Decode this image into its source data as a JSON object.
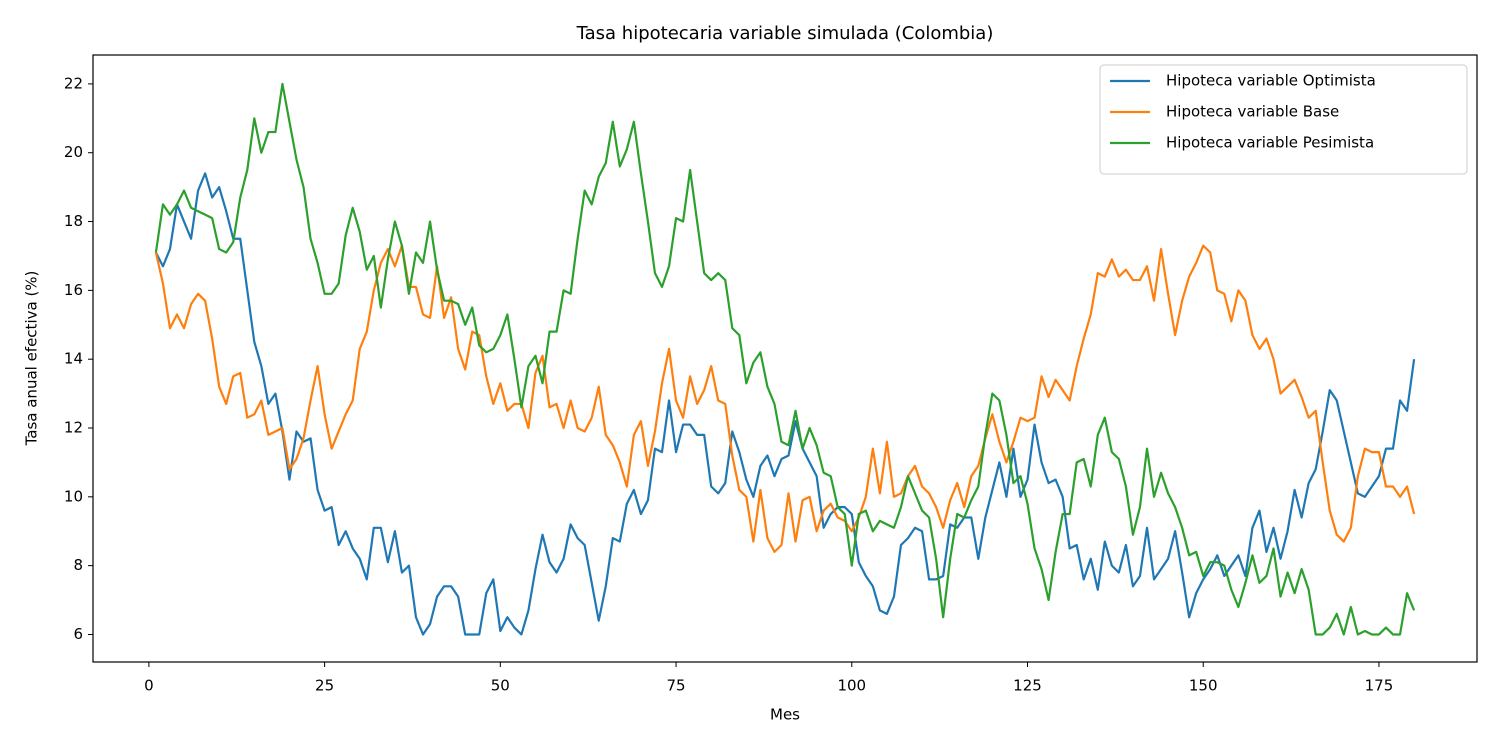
{
  "chart_data": {
    "type": "line",
    "title": "Tasa hipotecaria variable simulada (Colombia)",
    "x_label": "Mes",
    "y_label": "Tasa anual efectiva (%)",
    "x": [
      1,
      2,
      3,
      4,
      5,
      6,
      7,
      8,
      9,
      10,
      11,
      12,
      13,
      14,
      15,
      16,
      17,
      18,
      19,
      20,
      21,
      22,
      23,
      24,
      25,
      26,
      27,
      28,
      29,
      30,
      31,
      32,
      33,
      34,
      35,
      36,
      37,
      38,
      39,
      40,
      41,
      42,
      43,
      44,
      45,
      46,
      47,
      48,
      49,
      50,
      51,
      52,
      53,
      54,
      55,
      56,
      57,
      58,
      59,
      60,
      61,
      62,
      63,
      64,
      65,
      66,
      67,
      68,
      69,
      70,
      71,
      72,
      73,
      74,
      75,
      76,
      77,
      78,
      79,
      80,
      81,
      82,
      83,
      84,
      85,
      86,
      87,
      88,
      89,
      90,
      91,
      92,
      93,
      94,
      95,
      96,
      97,
      98,
      99,
      100,
      101,
      102,
      103,
      104,
      105,
      106,
      107,
      108,
      109,
      110,
      111,
      112,
      113,
      114,
      115,
      116,
      117,
      118,
      119,
      120,
      121,
      122,
      123,
      124,
      125,
      126,
      127,
      128,
      129,
      130,
      131,
      132,
      133,
      134,
      135,
      136,
      137,
      138,
      139,
      140,
      141,
      142,
      143,
      144,
      145,
      146,
      147,
      148,
      149,
      150,
      151,
      152,
      153,
      154,
      155,
      156,
      157,
      158,
      159,
      160,
      161,
      162,
      163,
      164,
      165,
      166,
      167,
      168,
      169,
      170,
      171,
      172,
      173,
      174,
      175,
      176,
      177,
      178,
      179,
      180
    ],
    "series": [
      {
        "name": "Hipoteca variable Optimista",
        "color": "#1f77b4",
        "values": [
          17.1,
          16.7,
          17.2,
          18.5,
          18.0,
          17.5,
          18.9,
          19.4,
          18.7,
          19.0,
          18.3,
          17.5,
          17.5,
          16.0,
          14.5,
          13.8,
          12.7,
          13.0,
          11.9,
          10.5,
          11.9,
          11.6,
          11.7,
          10.2,
          9.6,
          9.7,
          8.6,
          9.0,
          8.5,
          8.2,
          7.6,
          9.1,
          9.1,
          8.1,
          9.0,
          7.8,
          8.0,
          6.5,
          6.0,
          6.3,
          7.1,
          7.4,
          7.4,
          7.1,
          6.0,
          6.0,
          6.0,
          7.2,
          7.6,
          6.1,
          6.5,
          6.2,
          6.0,
          6.7,
          7.9,
          8.9,
          8.1,
          7.8,
          8.2,
          9.2,
          8.8,
          8.6,
          7.5,
          6.4,
          7.4,
          8.8,
          8.7,
          9.8,
          10.2,
          9.5,
          9.9,
          11.4,
          11.3,
          12.8,
          11.3,
          12.1,
          12.1,
          11.8,
          11.8,
          10.3,
          10.1,
          10.4,
          11.9,
          11.3,
          10.5,
          10.0,
          10.9,
          11.2,
          10.6,
          11.1,
          11.2,
          12.2,
          11.4,
          11.0,
          10.6,
          9.1,
          9.5,
          9.7,
          9.7,
          9.5,
          8.1,
          7.7,
          7.4,
          6.7,
          6.6,
          7.1,
          8.6,
          8.8,
          9.1,
          9.0,
          7.6,
          7.6,
          7.7,
          9.2,
          9.1,
          9.4,
          9.4,
          8.2,
          9.4,
          10.2,
          11.0,
          10.0,
          11.4,
          10.0,
          10.5,
          12.1,
          11.0,
          10.4,
          10.5,
          10.0,
          8.5,
          8.6,
          7.6,
          8.2,
          7.3,
          8.7,
          8.0,
          7.8,
          8.6,
          7.4,
          7.7,
          9.1,
          7.6,
          7.9,
          8.2,
          9.0,
          7.8,
          6.5,
          7.2,
          7.6,
          7.9,
          8.3,
          7.7,
          8.0,
          8.3,
          7.7,
          9.1,
          9.6,
          8.4,
          9.1,
          8.2,
          9.0,
          10.2,
          9.4,
          10.4,
          10.8,
          11.9,
          13.1,
          12.8,
          11.9,
          11.0,
          10.1,
          10.0,
          10.3,
          10.6,
          11.4,
          11.4,
          12.8,
          12.5,
          14.0
        ]
      },
      {
        "name": "Hipoteca variable Base",
        "color": "#ff7f0e",
        "values": [
          17.1,
          16.2,
          14.9,
          15.3,
          14.9,
          15.6,
          15.9,
          15.7,
          14.6,
          13.2,
          12.7,
          13.5,
          13.6,
          12.3,
          12.4,
          12.8,
          11.8,
          11.9,
          12.0,
          10.8,
          11.1,
          11.7,
          12.8,
          13.8,
          12.4,
          11.4,
          11.9,
          12.4,
          12.8,
          14.3,
          14.8,
          16.0,
          16.8,
          17.2,
          16.7,
          17.3,
          16.1,
          16.1,
          15.3,
          15.2,
          16.7,
          15.2,
          15.8,
          14.3,
          13.7,
          14.8,
          14.7,
          13.5,
          12.7,
          13.3,
          12.5,
          12.7,
          12.7,
          12.0,
          13.6,
          14.1,
          12.6,
          12.7,
          12.0,
          12.8,
          12.0,
          11.9,
          12.3,
          13.2,
          11.8,
          11.5,
          11.0,
          10.3,
          11.8,
          12.2,
          10.9,
          11.9,
          13.3,
          14.3,
          12.8,
          12.3,
          13.5,
          12.7,
          13.1,
          13.8,
          12.8,
          12.7,
          11.2,
          10.2,
          10.0,
          8.7,
          10.2,
          8.8,
          8.4,
          8.6,
          10.1,
          8.7,
          9.9,
          10.0,
          9.0,
          9.6,
          9.8,
          9.4,
          9.3,
          9.0,
          9.4,
          10.0,
          11.4,
          10.1,
          11.6,
          10.0,
          10.1,
          10.6,
          10.9,
          10.3,
          10.1,
          9.7,
          9.1,
          9.9,
          10.4,
          9.7,
          10.6,
          10.9,
          11.7,
          12.4,
          11.6,
          11.0,
          11.6,
          12.3,
          12.2,
          12.3,
          13.5,
          12.9,
          13.4,
          13.1,
          12.8,
          13.8,
          14.6,
          15.3,
          16.5,
          16.4,
          16.9,
          16.4,
          16.6,
          16.3,
          16.3,
          16.7,
          15.7,
          17.2,
          15.9,
          14.7,
          15.7,
          16.4,
          16.8,
          17.3,
          17.1,
          16.0,
          15.9,
          15.1,
          16.0,
          15.7,
          14.7,
          14.3,
          14.6,
          14.0,
          13.0,
          13.2,
          13.4,
          12.9,
          12.3,
          12.5,
          11.0,
          9.6,
          8.9,
          8.7,
          9.1,
          10.6,
          11.4,
          11.3,
          11.3,
          10.3,
          10.3,
          10.0,
          10.3,
          9.5
        ]
      },
      {
        "name": "Hipoteca variable Pesimista",
        "color": "#2ca02c",
        "values": [
          17.1,
          18.5,
          18.2,
          18.5,
          18.9,
          18.4,
          18.3,
          18.2,
          18.1,
          17.2,
          17.1,
          17.4,
          18.7,
          19.5,
          21.0,
          20.0,
          20.6,
          20.6,
          22.0,
          20.9,
          19.8,
          19.0,
          17.5,
          16.8,
          15.9,
          15.9,
          16.2,
          17.6,
          18.4,
          17.7,
          16.6,
          17.0,
          15.5,
          16.9,
          18.0,
          17.3,
          15.9,
          17.1,
          16.8,
          18.0,
          16.6,
          15.7,
          15.7,
          15.6,
          15.0,
          15.5,
          14.4,
          14.2,
          14.3,
          14.7,
          15.3,
          14.0,
          12.6,
          13.8,
          14.1,
          13.3,
          14.8,
          14.8,
          16.0,
          15.9,
          17.5,
          18.9,
          18.5,
          19.3,
          19.7,
          20.9,
          19.6,
          20.1,
          20.9,
          19.4,
          18.0,
          16.5,
          16.1,
          16.7,
          18.1,
          18.0,
          19.5,
          18.0,
          16.5,
          16.3,
          16.5,
          16.3,
          14.9,
          14.7,
          13.3,
          13.9,
          14.2,
          13.2,
          12.7,
          11.6,
          11.5,
          12.5,
          11.4,
          12.0,
          11.5,
          10.7,
          10.6,
          9.7,
          9.5,
          8.0,
          9.5,
          9.6,
          9.0,
          9.3,
          9.2,
          9.1,
          9.7,
          10.6,
          10.1,
          9.6,
          9.4,
          8.2,
          6.5,
          8.2,
          9.5,
          9.4,
          9.9,
          10.3,
          11.8,
          13.0,
          12.8,
          11.8,
          10.4,
          10.6,
          9.8,
          8.5,
          7.9,
          7.0,
          8.4,
          9.5,
          9.5,
          11.0,
          11.1,
          10.3,
          11.8,
          12.3,
          11.3,
          11.1,
          10.3,
          8.9,
          9.7,
          11.4,
          10.0,
          10.7,
          10.1,
          9.7,
          9.1,
          8.3,
          8.4,
          7.7,
          8.1,
          8.1,
          8.0,
          7.3,
          6.8,
          7.5,
          8.3,
          7.5,
          7.7,
          8.5,
          7.1,
          7.8,
          7.2,
          7.9,
          7.3,
          6.0,
          6.0,
          6.2,
          6.6,
          6.0,
          6.8,
          6.0,
          6.1,
          6.0,
          6.0,
          6.2,
          6.0,
          6.0,
          7.2,
          6.7
        ]
      }
    ],
    "xlim": [
      -7.95,
      188.95
    ],
    "ylim": [
      5.2,
      22.84
    ],
    "xticks": [
      0,
      25,
      50,
      75,
      100,
      125,
      150,
      175
    ],
    "yticks": [
      6,
      8,
      10,
      12,
      14,
      16,
      18,
      20,
      22
    ],
    "grid": false,
    "legend": "upper right"
  }
}
